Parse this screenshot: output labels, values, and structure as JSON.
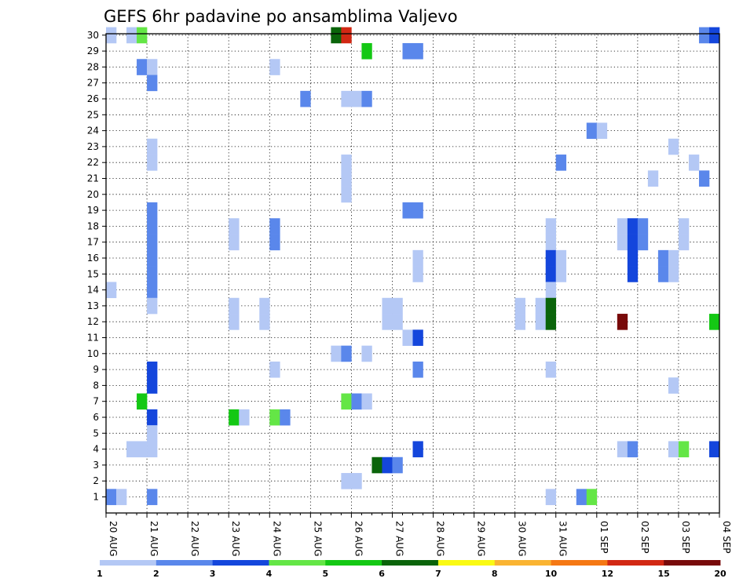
{
  "chart_data": {
    "type": "heatmap",
    "title": "GEFS 6hr padavine po ansamblima Valjevo",
    "x_tick_labels": [
      "20 AUG",
      "21 AUG",
      "22 AUG",
      "23 AUG",
      "24 AUG",
      "25 AUG",
      "26 AUG",
      "27 AUG",
      "28 AUG",
      "29 AUG",
      "30 AUG",
      "31 AUG",
      "01 SEP",
      "02 SEP",
      "03 SEP",
      "04 SEP"
    ],
    "x_steps_per_day": 4,
    "y_tick_labels": [
      "1",
      "2",
      "3",
      "4",
      "5",
      "6",
      "7",
      "8",
      "9",
      "10",
      "11",
      "12",
      "13",
      "14",
      "15",
      "16",
      "17",
      "18",
      "19",
      "20",
      "21",
      "22",
      "23",
      "24",
      "25",
      "26",
      "27",
      "28",
      "29",
      "30"
    ],
    "ylim": [
      1,
      30
    ],
    "grid": true,
    "legend_position": "bottom",
    "colorbar": {
      "labels": [
        "1",
        "2",
        "3",
        "4",
        "5",
        "6",
        "7",
        "8",
        "10",
        "12",
        "15",
        "20"
      ],
      "colors": [
        "#b4c8f5",
        "#5a87eb",
        "#1446dc",
        "#64e646",
        "#14c814",
        "#0a640a",
        "#fafa14",
        "#fab432",
        "#f57814",
        "#d22814",
        "#780a0a"
      ]
    },
    "cells": [
      [
        0,
        30,
        1.5
      ],
      [
        2,
        30,
        1.5
      ],
      [
        3,
        30,
        4.5
      ],
      [
        22,
        30,
        6.5
      ],
      [
        23,
        30,
        13
      ],
      [
        58,
        30,
        2.5
      ],
      [
        59,
        30,
        3.5
      ],
      [
        25,
        29,
        5.5
      ],
      [
        29,
        29,
        2.5
      ],
      [
        30,
        29,
        2.5
      ],
      [
        3,
        28,
        2.5
      ],
      [
        4,
        28,
        1.5
      ],
      [
        16,
        28,
        1.5
      ],
      [
        4,
        27,
        2.5
      ],
      [
        19,
        26,
        2.5
      ],
      [
        23,
        26,
        1.5
      ],
      [
        24,
        26,
        1.5
      ],
      [
        25,
        26,
        2.5
      ],
      [
        47,
        24,
        2.5
      ],
      [
        48,
        24,
        1.5
      ],
      [
        4,
        23,
        1.5
      ],
      [
        55,
        23,
        1.5
      ],
      [
        4,
        22,
        1.5
      ],
      [
        23,
        22,
        1.5
      ],
      [
        44,
        22,
        2.5
      ],
      [
        57,
        22,
        1.5
      ],
      [
        23,
        21,
        1.5
      ],
      [
        53,
        21,
        1.5
      ],
      [
        58,
        21,
        2.5
      ],
      [
        23,
        20,
        1.5
      ],
      [
        4,
        19,
        2.5
      ],
      [
        29,
        19,
        2.5
      ],
      [
        30,
        19,
        2.5
      ],
      [
        4,
        18,
        2.5
      ],
      [
        12,
        18,
        1.5
      ],
      [
        16,
        18,
        2.5
      ],
      [
        43,
        18,
        1.5
      ],
      [
        50,
        18,
        1.5
      ],
      [
        51,
        18,
        3.5
      ],
      [
        52,
        18,
        2.5
      ],
      [
        56,
        18,
        1.5
      ],
      [
        4,
        17,
        2.5
      ],
      [
        12,
        17,
        1.5
      ],
      [
        16,
        17,
        2.5
      ],
      [
        43,
        17,
        1.5
      ],
      [
        50,
        17,
        1.5
      ],
      [
        51,
        17,
        3.5
      ],
      [
        52,
        17,
        2.5
      ],
      [
        56,
        17,
        1.5
      ],
      [
        4,
        16,
        2.5
      ],
      [
        30,
        16,
        1.5
      ],
      [
        43,
        16,
        3.5
      ],
      [
        44,
        16,
        1.5
      ],
      [
        51,
        16,
        3.5
      ],
      [
        54,
        16,
        2.5
      ],
      [
        55,
        16,
        1.5
      ],
      [
        4,
        15,
        2.5
      ],
      [
        30,
        15,
        1.5
      ],
      [
        43,
        15,
        3.5
      ],
      [
        44,
        15,
        1.5
      ],
      [
        51,
        15,
        3.5
      ],
      [
        54,
        15,
        2.5
      ],
      [
        55,
        15,
        1.5
      ],
      [
        0,
        14,
        1.5
      ],
      [
        4,
        14,
        2.5
      ],
      [
        43,
        14,
        1.5
      ],
      [
        4,
        13,
        1.5
      ],
      [
        12,
        13,
        1.5
      ],
      [
        15,
        13,
        1.5
      ],
      [
        27,
        13,
        1.5
      ],
      [
        28,
        13,
        1.5
      ],
      [
        40,
        13,
        1.5
      ],
      [
        42,
        13,
        1.5
      ],
      [
        43,
        13,
        6.5
      ],
      [
        12,
        12,
        1.5
      ],
      [
        15,
        12,
        1.5
      ],
      [
        27,
        12,
        1.5
      ],
      [
        28,
        12,
        1.5
      ],
      [
        40,
        12,
        1.5
      ],
      [
        42,
        12,
        1.5
      ],
      [
        43,
        12,
        6.5
      ],
      [
        50,
        12,
        17
      ],
      [
        59,
        12,
        5.5
      ],
      [
        29,
        11,
        1.5
      ],
      [
        30,
        11,
        3.5
      ],
      [
        25,
        10,
        1.5
      ],
      [
        22,
        10,
        1.5
      ],
      [
        23,
        10,
        2.5
      ],
      [
        4,
        9,
        3.5
      ],
      [
        16,
        9,
        1.5
      ],
      [
        30,
        9,
        2.5
      ],
      [
        43,
        9,
        1.5
      ],
      [
        4,
        8,
        3.5
      ],
      [
        55,
        8,
        1.5
      ],
      [
        3,
        7,
        5.5
      ],
      [
        23,
        7,
        4.5
      ],
      [
        24,
        7,
        2.5
      ],
      [
        25,
        7,
        1.5
      ],
      [
        4,
        6,
        3.5
      ],
      [
        12,
        6,
        5.5
      ],
      [
        13,
        6,
        1.5
      ],
      [
        16,
        6,
        4.5
      ],
      [
        17,
        6,
        2.5
      ],
      [
        4,
        5,
        1.5
      ],
      [
        2,
        4,
        1.5
      ],
      [
        3,
        4,
        1.5
      ],
      [
        4,
        4,
        1.5
      ],
      [
        30,
        4,
        3.5
      ],
      [
        50,
        4,
        1.5
      ],
      [
        51,
        4,
        2.5
      ],
      [
        55,
        4,
        1.5
      ],
      [
        56,
        4,
        4.5
      ],
      [
        59,
        4,
        3.5
      ],
      [
        26,
        3,
        6.5
      ],
      [
        27,
        3,
        3.5
      ],
      [
        28,
        3,
        2.5
      ],
      [
        23,
        2,
        1.5
      ],
      [
        24,
        2,
        1.5
      ],
      [
        0,
        1,
        2.5
      ],
      [
        1,
        1,
        1.5
      ],
      [
        4,
        1,
        2.5
      ],
      [
        43,
        1,
        1.5
      ],
      [
        46,
        1,
        2.5
      ],
      [
        47,
        1,
        4.5
      ]
    ]
  }
}
